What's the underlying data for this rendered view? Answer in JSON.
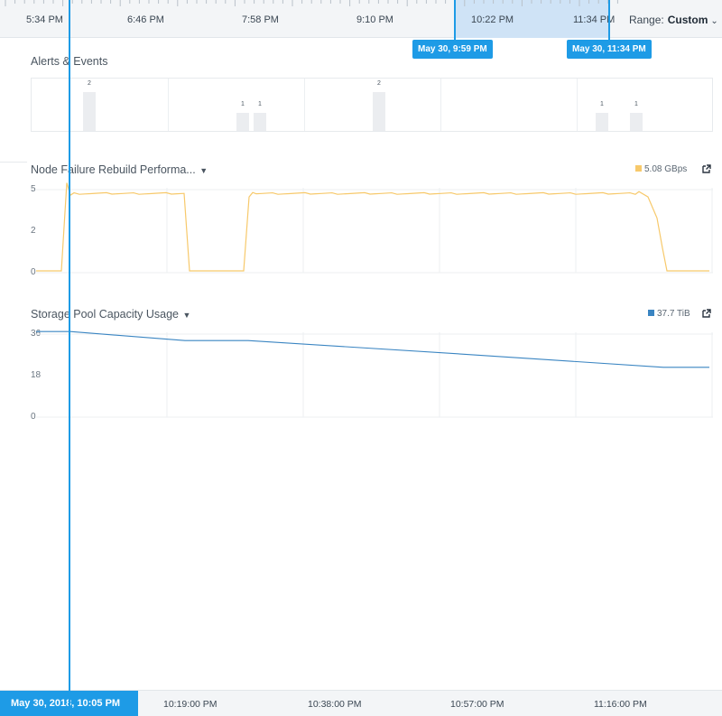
{
  "timeline": {
    "ticks": [
      "5:34 PM",
      "6:46 PM",
      "7:58 PM",
      "9:10 PM",
      "10:22 PM",
      "11:34 PM"
    ],
    "range_label": "Range:",
    "range_value": "Custom",
    "selection_start": "May 30, 9:59 PM",
    "selection_end": "May 30, 11:34 PM"
  },
  "alerts": {
    "title": "Alerts & Events",
    "counts": [
      "2",
      "1",
      "1",
      "2",
      "1",
      "1"
    ]
  },
  "rebuild": {
    "title": "Node Failure Rebuild Performa...",
    "legend_value": "5.08 GBps",
    "color": "#f7c96b",
    "y_ticks": [
      "5",
      "2",
      "0"
    ]
  },
  "capacity": {
    "title": "Storage Pool Capacity Usage",
    "legend_value": "37.7 TiB",
    "color": "#3a85c2",
    "y_ticks": [
      "36",
      "18",
      "0"
    ]
  },
  "bottom": {
    "cursor_time": "May 30, 2018, 10:05 PM",
    "ticks": [
      "10:19:00 PM",
      "10:38:00 PM",
      "10:57:00 PM",
      "11:16:00 PM"
    ]
  },
  "colors": {
    "accent": "#1e9be6",
    "selection": "#cfe3f6"
  },
  "icons": [
    "external-link-icon",
    "chevron-down-icon"
  ]
}
